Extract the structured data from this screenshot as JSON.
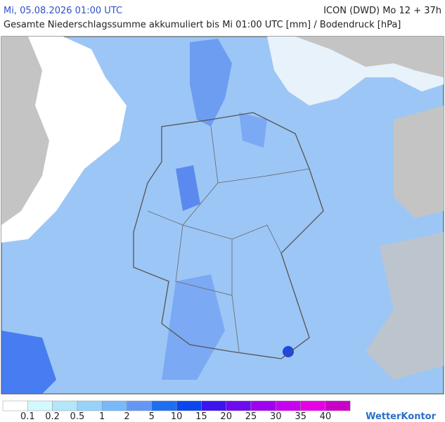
{
  "header": {
    "datetime": "Mi, 05.08.2026 01:00 UTC",
    "model": "ICON (DWD) Mo 12 + 37h",
    "title": "Gesamte Niederschlagssumme akkumuliert bis Mi 01:00 UTC [mm] / Bodendruck [hPa]"
  },
  "legend": {
    "colors": [
      "#ffffff",
      "#d2fafe",
      "#b4e6fa",
      "#96d2fa",
      "#78b9fa",
      "#6496f5",
      "#1e6ef0",
      "#0a46f0",
      "#3c14f0",
      "#6e0af0",
      "#a000f0",
      "#c800f0",
      "#e600e6",
      "#c800c8"
    ],
    "labels": [
      "0.1",
      "0.2",
      "0.5",
      "1",
      "2",
      "5",
      "10",
      "15",
      "20",
      "25",
      "30",
      "35",
      "40"
    ]
  },
  "brand": "WetterKontor"
}
